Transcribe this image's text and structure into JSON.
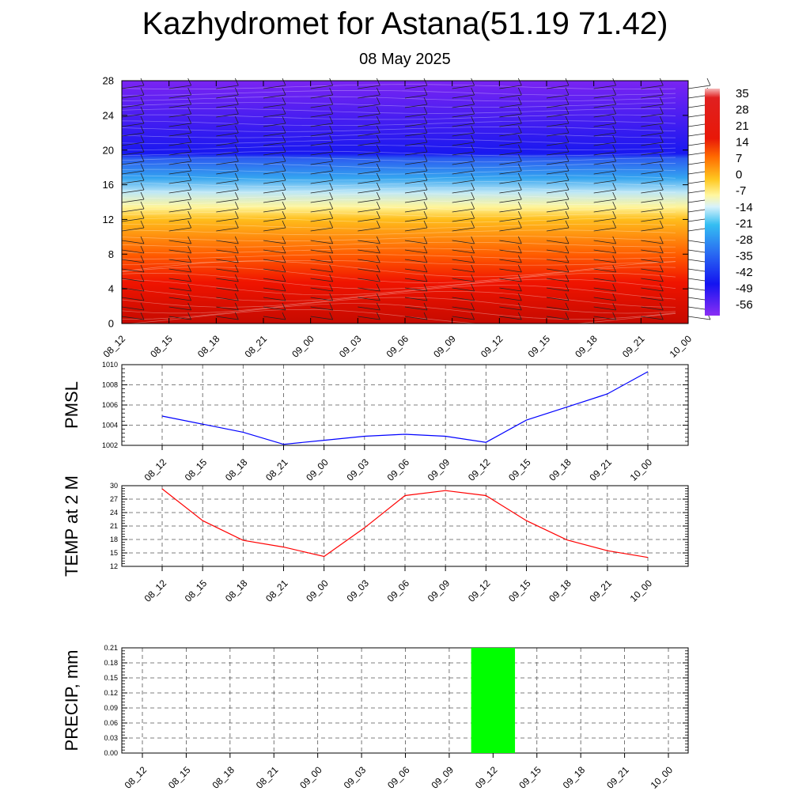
{
  "title": "Kazhydromet for Astana(51.19 71.42)",
  "subtitle": "08 May 2025",
  "chart_data": [
    {
      "type": "heatmap",
      "title": "",
      "xlabel": "",
      "ylabel": "",
      "x": [
        "08_12",
        "08_15",
        "08_18",
        "08_21",
        "09_00",
        "09_03",
        "09_06",
        "09_09",
        "09_12",
        "09_15",
        "09_18",
        "09_21",
        "10_00"
      ],
      "yticks": [
        "0",
        "4",
        "8",
        "12",
        "16",
        "20",
        "24",
        "28"
      ],
      "ylim": [
        0,
        28
      ],
      "colorbar_labels": [
        "35",
        "28",
        "21",
        "14",
        "7",
        "0",
        "-7",
        "-14",
        "-21",
        "-28",
        "-35",
        "-42",
        "-49",
        "-56"
      ],
      "colorbar_range": [
        -63,
        38
      ],
      "overlay": "wind barbs"
    },
    {
      "type": "line",
      "ylabel": "PMSL",
      "x": [
        "08_12",
        "08_15",
        "08_18",
        "08_21",
        "09_00",
        "09_03",
        "09_06",
        "09_09",
        "09_12",
        "09_15",
        "09_18",
        "09_21",
        "10_00"
      ],
      "values": [
        1004.9,
        1004.1,
        1003.3,
        1002.1,
        1002.5,
        1002.9,
        1003.1,
        1002.9,
        1002.3,
        1004.5,
        1005.8,
        1007.1,
        1009.3
      ],
      "ylim": [
        1002,
        1010
      ],
      "yticks": [
        "1002",
        "1004",
        "1006",
        "1008",
        "1010"
      ],
      "line_color": "#0000ff"
    },
    {
      "type": "line",
      "ylabel": "TEMP at 2 M",
      "x": [
        "08_12",
        "08_15",
        "08_18",
        "08_21",
        "09_00",
        "09_03",
        "09_06",
        "09_09",
        "09_12",
        "09_15",
        "09_18",
        "09_21",
        "10_00"
      ],
      "values": [
        29.3,
        22.2,
        17.8,
        16.3,
        14.2,
        20.6,
        27.8,
        28.9,
        27.8,
        22.2,
        17.9,
        15.5,
        14.0
      ],
      "ylim": [
        12,
        30
      ],
      "yticks": [
        "12",
        "15",
        "18",
        "21",
        "24",
        "27",
        "30"
      ],
      "line_color": "#ff0000"
    },
    {
      "type": "bar",
      "ylabel": "PRECIP, mm",
      "x": [
        "08_12",
        "08_15",
        "08_18",
        "08_21",
        "09_00",
        "09_03",
        "09_06",
        "09_09",
        "09_12",
        "09_15",
        "09_18",
        "09_21",
        "10_00"
      ],
      "values": [
        0,
        0,
        0,
        0,
        0,
        0,
        0,
        0,
        0.21,
        0,
        0,
        0,
        0
      ],
      "ylim": [
        0,
        0.21
      ],
      "yticks": [
        "0.00",
        "0.03",
        "0.06",
        "0.09",
        "0.12",
        "0.15",
        "0.18",
        "0.21"
      ],
      "bar_color": "#00ff00"
    }
  ]
}
